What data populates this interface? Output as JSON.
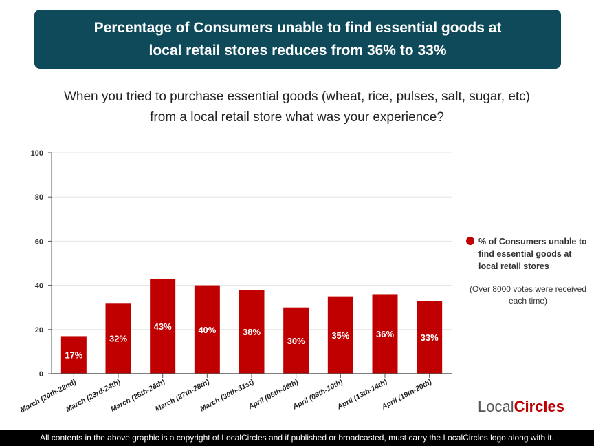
{
  "title": "Percentage of Consumers unable to find essential goods at local retail stores reduces from 36% to 33%",
  "question": "When you tried to purchase essential goods (wheat, rice, pulses, salt, sugar, etc) from a local retail store what was your experience?",
  "chart_data": {
    "type": "bar",
    "categories": [
      "March (20th-22nd)",
      "March (23rd-24th)",
      "March (25th-26th)",
      "March (27th-28th)",
      "March (30th-31st)",
      "April (05th-06th)",
      "April (09th-10th)",
      "April (13th-14th)",
      "April (19th-20th)"
    ],
    "series": [
      {
        "name": "% of Consumers unable to find essential goods at local retail stores",
        "values": [
          17,
          32,
          43,
          40,
          38,
          30,
          35,
          36,
          33
        ],
        "labels": [
          "17%",
          "32%",
          "43%",
          "40%",
          "38%",
          "30%",
          "35%",
          "36%",
          "33%"
        ],
        "color": "#c00000"
      }
    ],
    "ylim": [
      0,
      100
    ],
    "yticks": [
      "0",
      "20",
      "40",
      "60",
      "80",
      "100"
    ],
    "grid": true,
    "legend": "right"
  },
  "legend": {
    "label": "% of Consumers unable to find essential goods at local retail stores",
    "note": "(Over 8000 votes were received each time)"
  },
  "logo": {
    "text_a": "Local",
    "text_b": "Circles"
  },
  "footer": "All contents in the above graphic is a copyright of LocalCircles and if published or broadcasted, must carry the LocalCircles logo along with it."
}
